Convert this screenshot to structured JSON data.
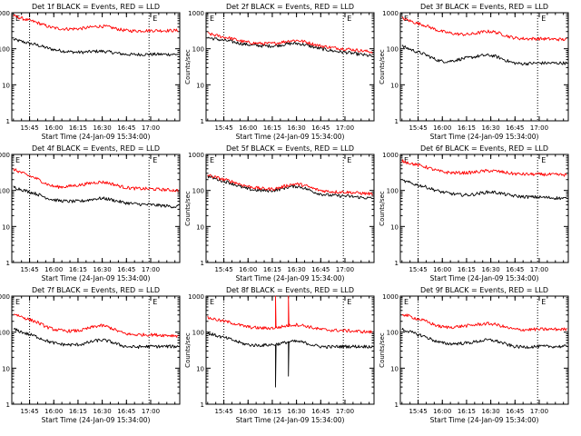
{
  "colors": {
    "events": "#000000",
    "lld": "#ff0000",
    "axes": "#000000",
    "background": "#ffffff"
  },
  "chart_data": [
    {
      "type": "line",
      "title": "Det 1f BLACK = Events, RED = LLD",
      "xlabel": "Start Time (24-Jan-09 15:34:00)",
      "ylabel": "Counts/sec",
      "y_scale": "log",
      "ylim": [
        1,
        1000
      ],
      "x": [
        "15:45",
        "16:00",
        "16:15",
        "16:30",
        "16:45",
        "17:00"
      ],
      "xlim": [
        "15:34",
        "17:18"
      ],
      "xticks": [
        "15:45",
        "16:00",
        "16:15",
        "16:30",
        "16:45",
        "17:00"
      ],
      "yticks": [
        "1",
        "10",
        "100",
        "1000"
      ],
      "vlines": [
        "15:45",
        "16:59"
      ],
      "flags": [
        "E",
        "E"
      ],
      "series": [
        {
          "values": [
            140,
            95,
            80,
            85,
            70,
            70
          ],
          "color": "#000000"
        },
        {
          "values": [
            600,
            380,
            360,
            420,
            320,
            320
          ],
          "color": "#ff0000"
        }
      ]
    },
    {
      "type": "line",
      "title": "Det 2f BLACK = Events, RED = LLD",
      "xlabel": "Start Time (24-Jan-09 15:34:00)",
      "ylabel": "Counts/sec",
      "y_scale": "log",
      "ylim": [
        1,
        1000
      ],
      "x": [
        "15:45",
        "16:00",
        "16:15",
        "16:30",
        "16:45",
        "17:00"
      ],
      "xlim": [
        "15:34",
        "17:18"
      ],
      "xticks": [
        "15:45",
        "16:00",
        "16:15",
        "16:30",
        "16:45",
        "17:00"
      ],
      "yticks": [
        "1",
        "10",
        "100",
        "1000"
      ],
      "vlines": [
        "15:45",
        "16:59"
      ],
      "flags": [
        "E",
        "E"
      ],
      "series": [
        {
          "values": [
            170,
            130,
            120,
            140,
            100,
            80
          ],
          "color": "#000000"
        },
        {
          "values": [
            210,
            150,
            140,
            170,
            120,
            100
          ],
          "color": "#ff0000"
        }
      ]
    },
    {
      "type": "line",
      "title": "Det 3f BLACK = Events, RED = LLD",
      "xlabel": "Start Time (24-Jan-09 15:34:00)",
      "ylabel": "Counts/sec",
      "y_scale": "log",
      "ylim": [
        1,
        1000
      ],
      "x": [
        "15:45",
        "16:00",
        "16:15",
        "16:30",
        "16:45",
        "17:00"
      ],
      "xlim": [
        "15:34",
        "17:18"
      ],
      "xticks": [
        "15:45",
        "16:00",
        "16:15",
        "16:30",
        "16:45",
        "17:00"
      ],
      "yticks": [
        "1",
        "10",
        "100",
        "1000"
      ],
      "vlines": [
        "15:45",
        "16:59"
      ],
      "flags": [
        "E",
        "E"
      ],
      "series": [
        {
          "values": [
            80,
            45,
            55,
            65,
            40,
            40
          ],
          "color": "#000000"
        },
        {
          "values": [
            500,
            300,
            250,
            300,
            200,
            190
          ],
          "color": "#ff0000"
        }
      ]
    },
    {
      "type": "line",
      "title": "Det 4f BLACK = Events, RED = LLD",
      "xlabel": "Start Time (24-Jan-09 15:34:00)",
      "ylabel": "Counts/sec",
      "y_scale": "log",
      "ylim": [
        1,
        1000
      ],
      "x": [
        "15:45",
        "16:00",
        "16:15",
        "16:30",
        "16:45",
        "17:00"
      ],
      "xlim": [
        "15:34",
        "17:18"
      ],
      "xticks": [
        "15:45",
        "16:00",
        "16:15",
        "16:30",
        "16:45",
        "17:00"
      ],
      "yticks": [
        "1",
        "10",
        "100",
        "1000"
      ],
      "vlines": [
        "15:45",
        "16:59"
      ],
      "flags": [
        "E",
        "E"
      ],
      "series": [
        {
          "values": [
            90,
            55,
            50,
            60,
            45,
            40
          ],
          "color": "#000000"
        },
        {
          "values": [
            250,
            130,
            140,
            170,
            120,
            110
          ],
          "color": "#ff0000"
        }
      ]
    },
    {
      "type": "line",
      "title": "Det 5f BLACK = Events, RED = LLD",
      "xlabel": "Start Time (24-Jan-09 15:34:00)",
      "ylabel": "Counts/sec",
      "y_scale": "log",
      "ylim": [
        1,
        1000
      ],
      "x": [
        "15:45",
        "16:00",
        "16:15",
        "16:30",
        "16:45",
        "17:00"
      ],
      "xlim": [
        "15:34",
        "17:18"
      ],
      "xticks": [
        "15:45",
        "16:00",
        "16:15",
        "16:30",
        "16:45",
        "17:00"
      ],
      "yticks": [
        "1",
        "10",
        "100",
        "1000"
      ],
      "vlines": [
        "15:45",
        "16:59"
      ],
      "flags": [
        "E",
        "E"
      ],
      "series": [
        {
          "values": [
            180,
            110,
            100,
            130,
            80,
            70
          ],
          "color": "#000000"
        },
        {
          "values": [
            200,
            130,
            110,
            150,
            100,
            90
          ],
          "color": "#ff0000"
        }
      ]
    },
    {
      "type": "line",
      "title": "Det 6f BLACK = Events, RED = LLD",
      "xlabel": "Start Time (24-Jan-09 15:34:00)",
      "ylabel": "Counts/sec",
      "y_scale": "log",
      "ylim": [
        1,
        1000
      ],
      "x": [
        "15:45",
        "16:00",
        "16:15",
        "16:30",
        "16:45",
        "17:00"
      ],
      "xlim": [
        "15:34",
        "17:18"
      ],
      "xticks": [
        "15:45",
        "16:00",
        "16:15",
        "16:30",
        "16:45",
        "17:00"
      ],
      "yticks": [
        "1",
        "10",
        "100",
        "1000"
      ],
      "vlines": [
        "15:45",
        "16:59"
      ],
      "flags": [
        "E",
        "E"
      ],
      "series": [
        {
          "values": [
            140,
            90,
            75,
            90,
            70,
            65
          ],
          "color": "#000000"
        },
        {
          "values": [
            500,
            330,
            310,
            350,
            290,
            280
          ],
          "color": "#ff0000"
        }
      ]
    },
    {
      "type": "line",
      "title": "Det 7f BLACK = Events, RED = LLD",
      "xlabel": "Start Time (24-Jan-09 15:34:00)",
      "ylabel": "Counts/sec",
      "y_scale": "log",
      "ylim": [
        1,
        1000
      ],
      "x": [
        "15:45",
        "16:00",
        "16:15",
        "16:30",
        "16:45",
        "17:00"
      ],
      "xlim": [
        "15:34",
        "17:18"
      ],
      "xticks": [
        "15:45",
        "16:00",
        "16:15",
        "16:30",
        "16:45",
        "17:00"
      ],
      "yticks": [
        "1",
        "10",
        "100",
        "1000"
      ],
      "vlines": [
        "15:45",
        "16:59"
      ],
      "flags": [
        "E",
        "E"
      ],
      "series": [
        {
          "values": [
            85,
            50,
            45,
            60,
            40,
            40
          ],
          "color": "#000000"
        },
        {
          "values": [
            220,
            120,
            110,
            150,
            90,
            85
          ],
          "color": "#ff0000"
        }
      ]
    },
    {
      "type": "line",
      "title": "Det 8f BLACK = Events, RED = LLD",
      "xlabel": "Start Time (24-Jan-09 15:34:00)",
      "ylabel": "Counts/sec",
      "y_scale": "log",
      "ylim": [
        1,
        1000
      ],
      "x": [
        "15:45",
        "16:00",
        "16:15",
        "16:30",
        "16:45",
        "17:00"
      ],
      "xlim": [
        "15:34",
        "17:18"
      ],
      "xticks": [
        "15:45",
        "16:00",
        "16:15",
        "16:30",
        "16:45",
        "17:00"
      ],
      "yticks": [
        "1",
        "10",
        "100",
        "1000"
      ],
      "vlines": [
        "15:45",
        "16:59"
      ],
      "flags": [
        "E",
        "E"
      ],
      "spikes": [
        {
          "x": "16:17",
          "black": 3,
          "red": 1000
        },
        {
          "x": "16:25",
          "black": 6,
          "red": 1000
        }
      ],
      "series": [
        {
          "values": [
            70,
            45,
            45,
            55,
            40,
            40
          ],
          "color": "#000000"
        },
        {
          "values": [
            200,
            140,
            130,
            160,
            120,
            110
          ],
          "color": "#ff0000"
        }
      ]
    },
    {
      "type": "line",
      "title": "Det 9f BLACK = Events, RED = LLD",
      "xlabel": "Start Time (24-Jan-09 15:34:00)",
      "ylabel": "Counts/sec",
      "y_scale": "log",
      "ylim": [
        1,
        1000
      ],
      "x": [
        "15:45",
        "16:00",
        "16:15",
        "16:30",
        "16:45",
        "17:00"
      ],
      "xlim": [
        "15:34",
        "17:18"
      ],
      "xticks": [
        "15:45",
        "16:00",
        "16:15",
        "16:30",
        "16:45",
        "17:00"
      ],
      "yticks": [
        "1",
        "10",
        "100",
        "1000"
      ],
      "vlines": [
        "15:45",
        "16:59"
      ],
      "flags": [
        "E",
        "E"
      ],
      "series": [
        {
          "values": [
            85,
            50,
            50,
            60,
            40,
            40
          ],
          "color": "#000000"
        },
        {
          "values": [
            230,
            140,
            150,
            170,
            120,
            120
          ],
          "color": "#ff0000"
        }
      ]
    }
  ]
}
